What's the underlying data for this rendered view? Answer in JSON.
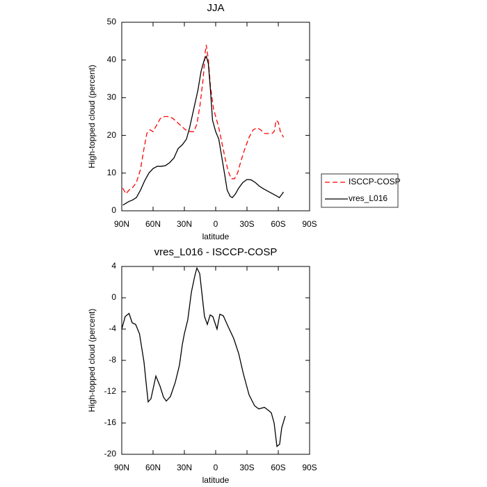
{
  "chart_data": [
    {
      "type": "line",
      "title": "JJA",
      "xlabel": "latitude",
      "ylabel": "High-topped cloud (percent)",
      "xlim": [
        90,
        -90
      ],
      "xticks": [
        {
          "value": 90,
          "label": "90N"
        },
        {
          "value": 60,
          "label": "60N"
        },
        {
          "value": 30,
          "label": "30N"
        },
        0,
        {
          "value": -30,
          "label": "30S"
        },
        {
          "value": -60,
          "label": "60S"
        },
        {
          "value": -90,
          "label": "90S"
        }
      ],
      "ylim": [
        0,
        50
      ],
      "yticks": [
        0,
        10,
        20,
        30,
        40,
        50
      ],
      "legend": "right",
      "series": [
        {
          "name": "ISCCP-COSP",
          "color": "#ff0000",
          "style": "dashed",
          "x": [
            89,
            86,
            83,
            80,
            76,
            72,
            69,
            66,
            63,
            60,
            57,
            53,
            49,
            45,
            41,
            37,
            33,
            29,
            25,
            21,
            18,
            15,
            12,
            10,
            9,
            7,
            5,
            2,
            0,
            -3,
            -6,
            -9,
            -12,
            -15,
            -18,
            -21,
            -24,
            -28,
            -32,
            -36,
            -40,
            -43,
            -47,
            -51,
            -54,
            -56,
            -58,
            -60,
            -62,
            -65
          ],
          "values": [
            6,
            4.5,
            5.5,
            6,
            7.5,
            11,
            16,
            20.5,
            21.5,
            21,
            22.5,
            24.5,
            25,
            25,
            24.5,
            23.5,
            22.5,
            21.5,
            21,
            21,
            23,
            28,
            35,
            42,
            44,
            40,
            33,
            27,
            25,
            22,
            18,
            14,
            10.5,
            8.5,
            8.5,
            10,
            13,
            16.5,
            19.5,
            21.5,
            22,
            21.5,
            20.5,
            20.5,
            20.5,
            21,
            24,
            23.5,
            21,
            19.5
          ]
        },
        {
          "name": "vres_L016",
          "color": "#000000",
          "style": "solid",
          "x": [
            89,
            86,
            83,
            80,
            76,
            72,
            68,
            64,
            60,
            56,
            52,
            48,
            44,
            40,
            36,
            32,
            28,
            25,
            21,
            17,
            14,
            11,
            9,
            7,
            5,
            3,
            0,
            -3,
            -6,
            -9,
            -11,
            -14,
            -16,
            -19,
            -22,
            -26,
            -30,
            -34,
            -38,
            -42,
            -46,
            -50,
            -54,
            -58,
            -61,
            -63,
            -65
          ],
          "values": [
            1.5,
            2,
            2.5,
            2.8,
            3.5,
            5.5,
            8,
            10,
            11.2,
            11.8,
            11.8,
            12,
            12.8,
            14,
            16.5,
            17.5,
            19,
            22,
            27,
            32,
            37,
            40,
            41,
            39,
            32,
            24,
            21,
            19,
            14,
            9,
            5.5,
            3.8,
            3.5,
            4.5,
            6,
            7.5,
            8.3,
            8.2,
            7.5,
            6.5,
            5.8,
            5.2,
            4.6,
            4,
            3.5,
            4.2,
            5
          ]
        }
      ]
    },
    {
      "type": "line",
      "title": "vres_L016 - ISCCP-COSP",
      "xlabel": "latitude",
      "ylabel": "High-topped cloud (percent)",
      "xlim": [
        90,
        -90
      ],
      "xticks": [
        {
          "value": 90,
          "label": "90N"
        },
        {
          "value": 60,
          "label": "60N"
        },
        {
          "value": 30,
          "label": "30N"
        },
        0,
        {
          "value": -30,
          "label": "30S"
        },
        {
          "value": -60,
          "label": "60S"
        },
        {
          "value": -90,
          "label": "90S"
        }
      ],
      "ylim": [
        -20,
        4
      ],
      "yticks": [
        -20,
        -16,
        -12,
        -8,
        -4,
        0,
        4
      ],
      "color": "#000000",
      "x": [
        90,
        86.7,
        83,
        80,
        76.7,
        73,
        68.7,
        66,
        64.7,
        62,
        57.3,
        53.3,
        50,
        47.3,
        43.3,
        38.7,
        34.7,
        32,
        30,
        26.7,
        23.3,
        20,
        18,
        15.3,
        13.3,
        10.7,
        8,
        5.3,
        2.7,
        -1.3,
        -4,
        -7.3,
        -12,
        -17.3,
        -22,
        -26.7,
        -32,
        -37.3,
        -41.3,
        -46.7,
        -50.7,
        -53.3,
        -56,
        -58.7,
        -61.3,
        -63.3,
        -66.7
      ],
      "values": [
        -4,
        -2.4,
        -2,
        -3.2,
        -3.4,
        -4.6,
        -8.2,
        -11.7,
        -13.3,
        -12.9,
        -10,
        -11.3,
        -12.7,
        -13.2,
        -12.6,
        -10.8,
        -8.6,
        -6,
        -4.6,
        -2.8,
        0.7,
        2.8,
        3.8,
        3.1,
        0.7,
        -2.4,
        -3.4,
        -2.2,
        -2.4,
        -4,
        -2.1,
        -2.3,
        -3.7,
        -5.2,
        -7.1,
        -9.8,
        -12.4,
        -13.8,
        -14.2,
        -14,
        -14.4,
        -14.7,
        -16,
        -19,
        -18.7,
        -16.6,
        -15.1
      ]
    }
  ]
}
